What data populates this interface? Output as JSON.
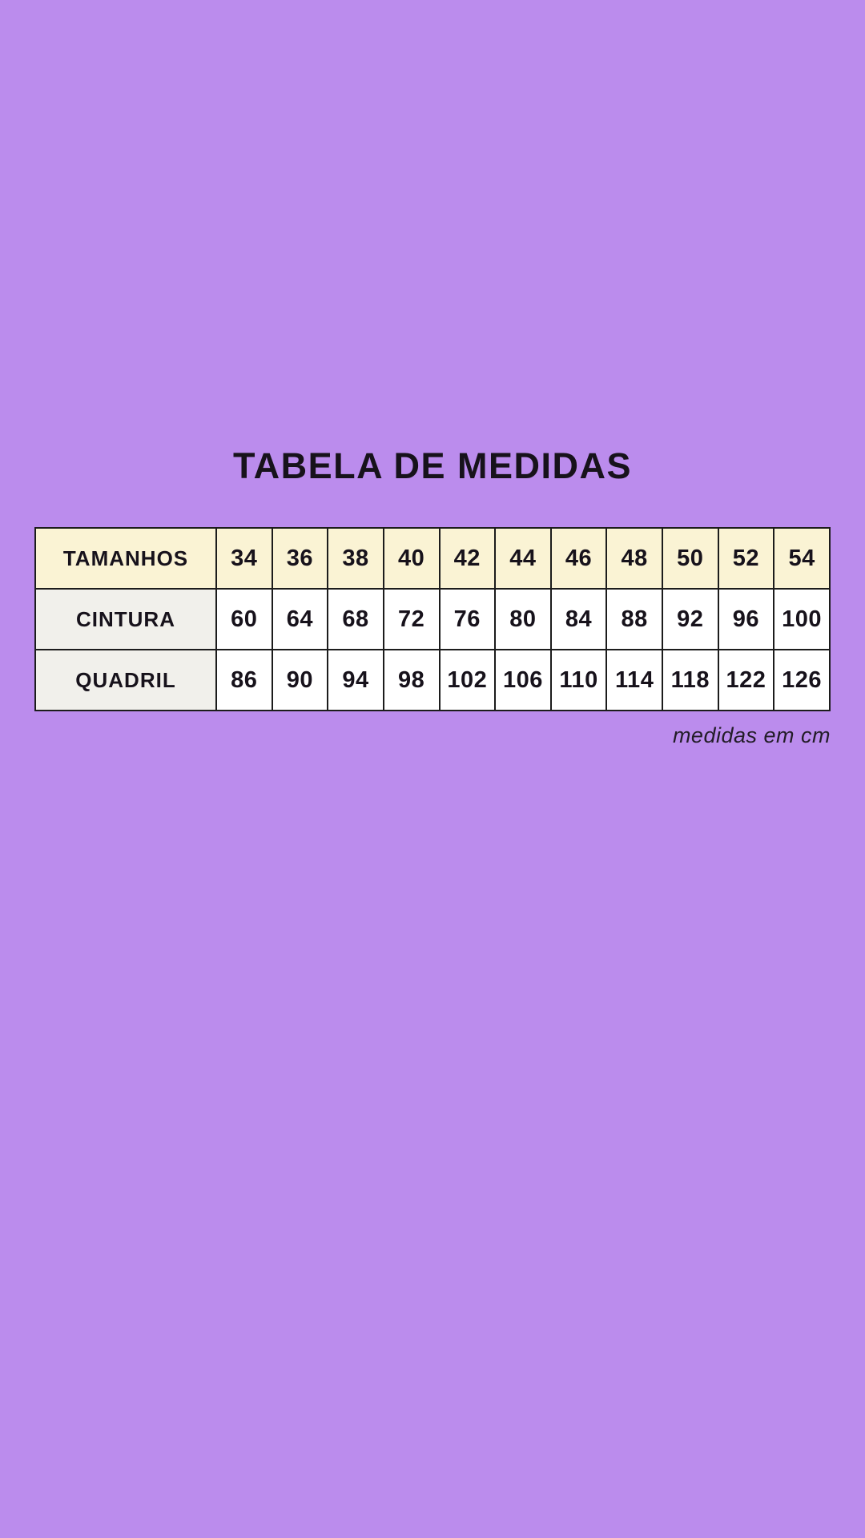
{
  "title": "TABELA DE MEDIDAS",
  "caption": "medidas em cm",
  "colors": {
    "background": "#bb8ced",
    "header_row": "#faf3d4",
    "label_cell": "#f1f0eb",
    "data_cell": "#ffffff",
    "border": "#1c1c1c",
    "text": "#17121b"
  },
  "table": {
    "header": {
      "label": "TAMANHOS",
      "sizes": [
        "34",
        "36",
        "38",
        "40",
        "42",
        "44",
        "46",
        "48",
        "50",
        "52",
        "54"
      ]
    },
    "rows": [
      {
        "label": "CINTURA",
        "values": [
          "60",
          "64",
          "68",
          "72",
          "76",
          "80",
          "84",
          "88",
          "92",
          "96",
          "100"
        ]
      },
      {
        "label": "QUADRIL",
        "values": [
          "86",
          "90",
          "94",
          "98",
          "102",
          "106",
          "110",
          "114",
          "118",
          "122",
          "126"
        ]
      }
    ]
  }
}
